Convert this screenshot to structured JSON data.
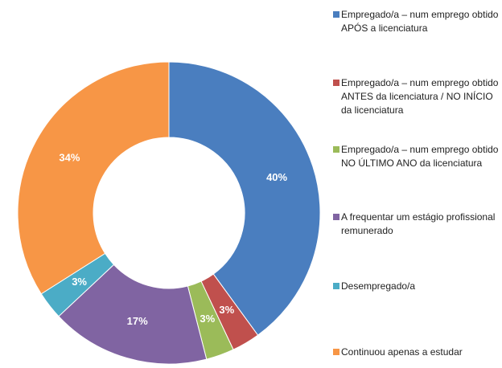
{
  "chart_data": {
    "type": "donut",
    "categories": [
      "Empregado/a – num emprego obtido APÓS a licenciatura",
      "Empregado/a – num emprego obtido ANTES da licenciatura / NO INÍCIO da licenciatura",
      "Empregado/a – num emprego obtido NO ÚLTIMO ANO da licenciatura",
      "A frequentar um estágio profissional remunerado",
      "Desempregado/a",
      "Continuou apenas a estudar"
    ],
    "values": [
      40,
      3,
      3,
      17,
      3,
      34
    ],
    "value_labels": [
      "40%",
      "3%",
      "3%",
      "17%",
      "3%",
      "34%"
    ],
    "colors": [
      "#4a7ebf",
      "#c0504d",
      "#9bbb59",
      "#8064a2",
      "#4bacc6",
      "#f79646"
    ],
    "legend": "right"
  }
}
